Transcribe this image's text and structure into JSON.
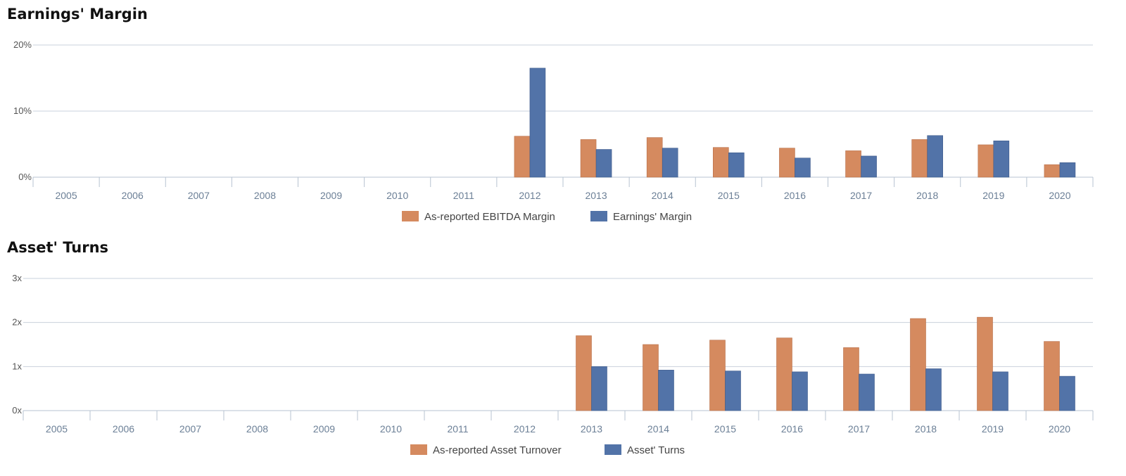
{
  "chart_data": [
    {
      "type": "bar",
      "title": "Earnings' Margin",
      "categories": [
        "2005",
        "2006",
        "2007",
        "2008",
        "2009",
        "2010",
        "2011",
        "2012",
        "2013",
        "2014",
        "2015",
        "2016",
        "2017",
        "2018",
        "2019",
        "2020"
      ],
      "series": [
        {
          "name": "As-reported EBITDA Margin",
          "color": "#d58a5f",
          "values": [
            null,
            null,
            null,
            null,
            null,
            null,
            null,
            6.2,
            5.7,
            6.0,
            4.5,
            4.4,
            4.0,
            5.7,
            4.9,
            1.9
          ]
        },
        {
          "name": "Earnings' Margin",
          "color": "#5273a8",
          "values": [
            null,
            null,
            null,
            null,
            null,
            null,
            null,
            16.5,
            4.2,
            4.4,
            3.7,
            2.9,
            3.2,
            6.3,
            5.5,
            2.2
          ]
        }
      ],
      "ylim": [
        0,
        20
      ],
      "yticks": [
        0,
        10,
        20
      ],
      "ytick_labels": [
        "0%",
        "10%",
        "20%"
      ],
      "grid": true,
      "legend": "bottom-center"
    },
    {
      "type": "bar",
      "title": "Asset' Turns",
      "categories": [
        "2005",
        "2006",
        "2007",
        "2008",
        "2009",
        "2010",
        "2011",
        "2012",
        "2013",
        "2014",
        "2015",
        "2016",
        "2017",
        "2018",
        "2019",
        "2020"
      ],
      "series": [
        {
          "name": "As-reported Asset Turnover",
          "color": "#d58a5f",
          "values": [
            null,
            null,
            null,
            null,
            null,
            null,
            null,
            null,
            1.7,
            1.5,
            1.6,
            1.65,
            1.43,
            2.09,
            2.12,
            1.57
          ]
        },
        {
          "name": "Asset' Turns",
          "color": "#5273a8",
          "values": [
            null,
            null,
            null,
            null,
            null,
            null,
            null,
            null,
            1.0,
            0.92,
            0.9,
            0.88,
            0.83,
            0.95,
            0.88,
            0.78
          ]
        }
      ],
      "ylim": [
        0,
        3
      ],
      "yticks": [
        0,
        1,
        2,
        3
      ],
      "ytick_labels": [
        "0x",
        "1x",
        "2x",
        "3x"
      ],
      "grid": true,
      "legend": "bottom-center"
    }
  ]
}
